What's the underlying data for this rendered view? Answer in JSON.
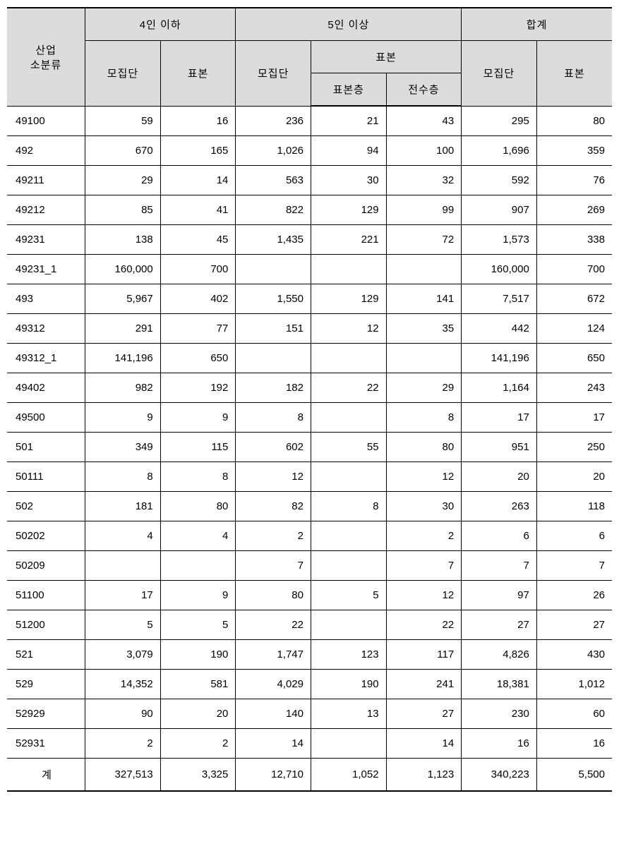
{
  "table": {
    "header": {
      "row_label_line1": "산업",
      "row_label_line2": "소분류",
      "group_4_below": "4인 이하",
      "group_5_above": "5인 이상",
      "group_total": "합계",
      "population": "모집단",
      "sample": "표본",
      "sample_stratum": "표본층",
      "census_stratum": "전수층"
    },
    "colors": {
      "header_bg": "#dcdcdc",
      "border": "#000000",
      "text": "#000000",
      "background": "#ffffff"
    },
    "rows": [
      {
        "code": "49100",
        "c1": "59",
        "c2": "16",
        "c3": "236",
        "c4": "21",
        "c5": "43",
        "c6": "295",
        "c7": "80"
      },
      {
        "code": "492",
        "c1": "670",
        "c2": "165",
        "c3": "1,026",
        "c4": "94",
        "c5": "100",
        "c6": "1,696",
        "c7": "359"
      },
      {
        "code": "49211",
        "c1": "29",
        "c2": "14",
        "c3": "563",
        "c4": "30",
        "c5": "32",
        "c6": "592",
        "c7": "76"
      },
      {
        "code": "49212",
        "c1": "85",
        "c2": "41",
        "c3": "822",
        "c4": "129",
        "c5": "99",
        "c6": "907",
        "c7": "269"
      },
      {
        "code": "49231",
        "c1": "138",
        "c2": "45",
        "c3": "1,435",
        "c4": "221",
        "c5": "72",
        "c6": "1,573",
        "c7": "338"
      },
      {
        "code": "49231_1",
        "c1": "160,000",
        "c2": "700",
        "c3": "",
        "c4": "",
        "c5": "",
        "c6": "160,000",
        "c7": "700"
      },
      {
        "code": "493",
        "c1": "5,967",
        "c2": "402",
        "c3": "1,550",
        "c4": "129",
        "c5": "141",
        "c6": "7,517",
        "c7": "672"
      },
      {
        "code": "49312",
        "c1": "291",
        "c2": "77",
        "c3": "151",
        "c4": "12",
        "c5": "35",
        "c6": "442",
        "c7": "124"
      },
      {
        "code": "49312_1",
        "c1": "141,196",
        "c2": "650",
        "c3": "",
        "c4": "",
        "c5": "",
        "c6": "141,196",
        "c7": "650"
      },
      {
        "code": "49402",
        "c1": "982",
        "c2": "192",
        "c3": "182",
        "c4": "22",
        "c5": "29",
        "c6": "1,164",
        "c7": "243"
      },
      {
        "code": "49500",
        "c1": "9",
        "c2": "9",
        "c3": "8",
        "c4": "",
        "c5": "8",
        "c6": "17",
        "c7": "17"
      },
      {
        "code": "501",
        "c1": "349",
        "c2": "115",
        "c3": "602",
        "c4": "55",
        "c5": "80",
        "c6": "951",
        "c7": "250"
      },
      {
        "code": "50111",
        "c1": "8",
        "c2": "8",
        "c3": "12",
        "c4": "",
        "c5": "12",
        "c6": "20",
        "c7": "20"
      },
      {
        "code": "502",
        "c1": "181",
        "c2": "80",
        "c3": "82",
        "c4": "8",
        "c5": "30",
        "c6": "263",
        "c7": "118"
      },
      {
        "code": "50202",
        "c1": "4",
        "c2": "4",
        "c3": "2",
        "c4": "",
        "c5": "2",
        "c6": "6",
        "c7": "6"
      },
      {
        "code": "50209",
        "c1": "",
        "c2": "",
        "c3": "7",
        "c4": "",
        "c5": "7",
        "c6": "7",
        "c7": "7"
      },
      {
        "code": "51100",
        "c1": "17",
        "c2": "9",
        "c3": "80",
        "c4": "5",
        "c5": "12",
        "c6": "97",
        "c7": "26"
      },
      {
        "code": "51200",
        "c1": "5",
        "c2": "5",
        "c3": "22",
        "c4": "",
        "c5": "22",
        "c6": "27",
        "c7": "27"
      },
      {
        "code": "521",
        "c1": "3,079",
        "c2": "190",
        "c3": "1,747",
        "c4": "123",
        "c5": "117",
        "c6": "4,826",
        "c7": "430"
      },
      {
        "code": "529",
        "c1": "14,352",
        "c2": "581",
        "c3": "4,029",
        "c4": "190",
        "c5": "241",
        "c6": "18,381",
        "c7": "1,012"
      },
      {
        "code": "52929",
        "c1": "90",
        "c2": "20",
        "c3": "140",
        "c4": "13",
        "c5": "27",
        "c6": "230",
        "c7": "60"
      },
      {
        "code": "52931",
        "c1": "2",
        "c2": "2",
        "c3": "14",
        "c4": "",
        "c5": "14",
        "c6": "16",
        "c7": "16"
      },
      {
        "code": "계",
        "c1": "327,513",
        "c2": "3,325",
        "c3": "12,710",
        "c4": "1,052",
        "c5": "1,123",
        "c6": "340,223",
        "c7": "5,500"
      }
    ]
  }
}
